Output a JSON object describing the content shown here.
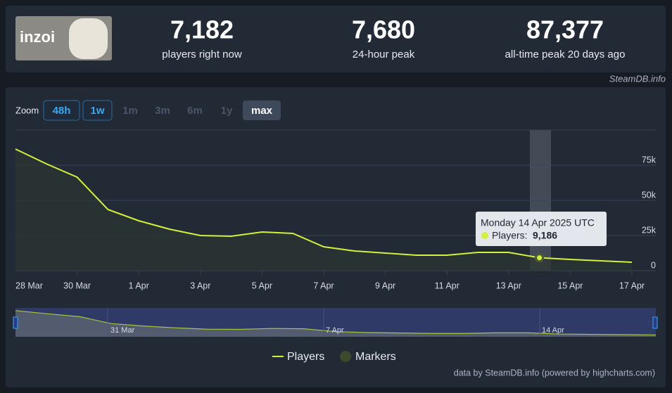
{
  "header": {
    "logo": "inzoi",
    "stats": [
      {
        "value": "7,182",
        "label": "players right now"
      },
      {
        "value": "7,680",
        "label": "24-hour peak"
      },
      {
        "value": "87,377",
        "label": "all-time peak 20 days ago"
      }
    ],
    "source": "SteamDB.info"
  },
  "zoom": {
    "label": "Zoom",
    "buttons": [
      "48h",
      "1w",
      "1m",
      "3m",
      "6m",
      "1y",
      "max"
    ]
  },
  "tooltip": {
    "date": "Monday 14 Apr 2025 UTC",
    "label": "Players:",
    "value": "9,186"
  },
  "navigator": {
    "labels": [
      "31 Mar",
      "7 Apr",
      "14 Apr"
    ]
  },
  "legend": [
    "Players",
    "Markers"
  ],
  "credits": "data by SteamDB.info (powered by highcharts.com)",
  "chart_data": {
    "type": "line",
    "categories": [
      "28 Mar",
      null,
      "30 Mar",
      null,
      "1 Apr",
      null,
      "3 Apr",
      null,
      "5 Apr",
      null,
      "7 Apr",
      null,
      "9 Apr",
      null,
      "11 Apr",
      null,
      "13 Apr",
      null,
      "15 Apr",
      null,
      "17 Apr"
    ],
    "series": [
      {
        "name": "Players",
        "color": "#d2f03c",
        "values": [
          86500,
          76000,
          66500,
          43500,
          35500,
          29500,
          25000,
          24500,
          27500,
          26500,
          17000,
          14000,
          12500,
          11000,
          11000,
          13000,
          13000,
          9186,
          8000,
          7000,
          6000
        ]
      }
    ],
    "ylim": [
      0,
      100000
    ],
    "yticks": [
      0,
      {
        "value": 25000,
        "label": "25k"
      },
      {
        "value": 50000,
        "label": "50k"
      },
      {
        "value": 75000,
        "label": "75k"
      }
    ],
    "grid": true
  }
}
